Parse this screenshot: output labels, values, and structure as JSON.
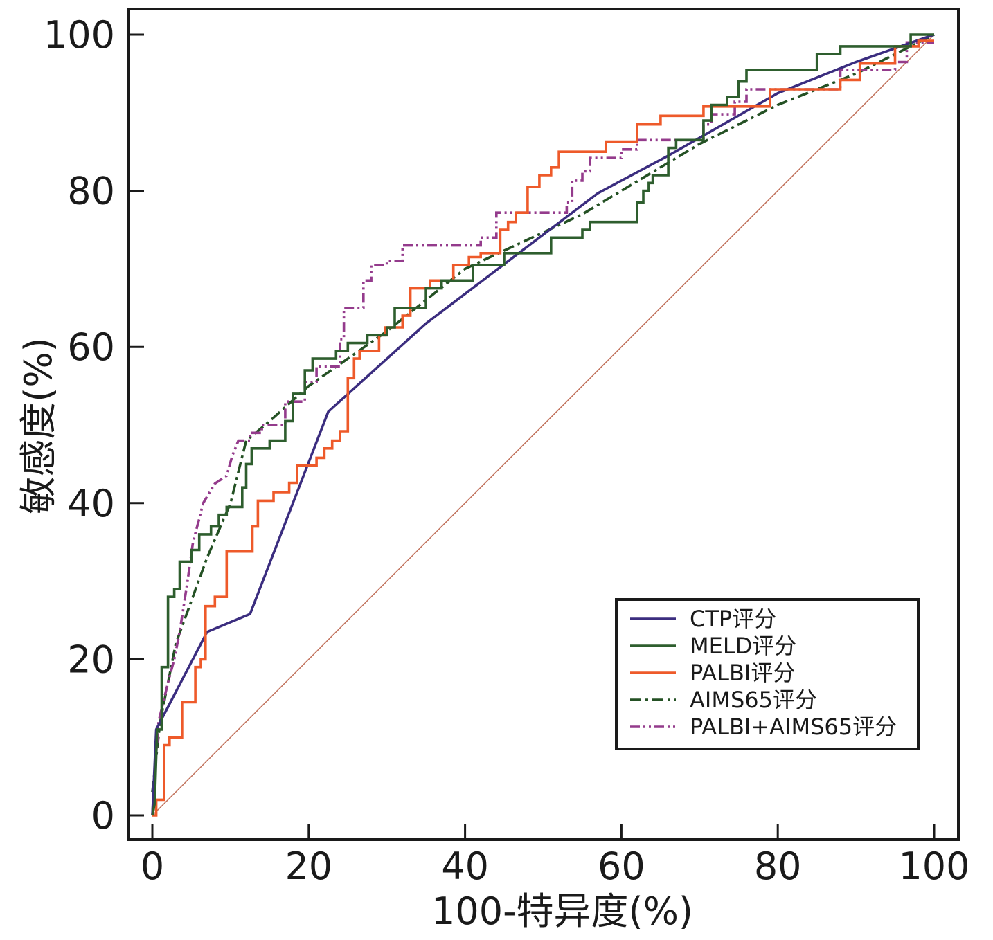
{
  "chart_data": {
    "type": "line",
    "title": "",
    "xlabel": "100-特异度(%)",
    "ylabel": "敏感度(%)",
    "xlim": [
      0,
      100
    ],
    "ylim": [
      0,
      100
    ],
    "x_ticks": [
      "0",
      "20",
      "40",
      "60",
      "80",
      "100"
    ],
    "y_ticks": [
      "0",
      "20",
      "40",
      "60",
      "80",
      "100"
    ],
    "legend_position": "bottom-right",
    "reference_line": {
      "name": "reference",
      "color": "#c0705a",
      "points": [
        [
          0,
          0
        ],
        [
          100,
          100
        ]
      ]
    },
    "series": [
      {
        "name": "CTP评分",
        "color": "#3b2d7f",
        "dash": "solid",
        "points": [
          [
            0,
            0
          ],
          [
            0.5,
            11
          ],
          [
            7,
            23.5
          ],
          [
            12.5,
            25.8
          ],
          [
            22.5,
            51.7
          ],
          [
            35,
            63
          ],
          [
            57,
            79.7
          ],
          [
            66,
            84.5
          ],
          [
            80,
            92.5
          ],
          [
            90,
            96.5
          ],
          [
            100,
            100
          ]
        ]
      },
      {
        "name": "MELD评分",
        "color": "#2e5e2e",
        "dash": "solid",
        "points": [
          [
            0,
            0
          ],
          [
            0.3,
            1.5
          ],
          [
            0.6,
            11
          ],
          [
            1.2,
            11
          ],
          [
            1.2,
            19
          ],
          [
            2,
            19
          ],
          [
            2,
            28
          ],
          [
            2.8,
            28
          ],
          [
            2.8,
            29
          ],
          [
            3.5,
            29
          ],
          [
            3.5,
            32.5
          ],
          [
            5,
            32.5
          ],
          [
            5,
            34
          ],
          [
            6,
            34
          ],
          [
            6,
            36
          ],
          [
            7.5,
            36
          ],
          [
            7.5,
            37
          ],
          [
            8.5,
            37
          ],
          [
            8.5,
            38.5
          ],
          [
            9.5,
            38.5
          ],
          [
            9.5,
            39.5
          ],
          [
            11.5,
            39.5
          ],
          [
            11.5,
            42
          ],
          [
            12,
            42
          ],
          [
            12,
            45
          ],
          [
            12.7,
            45
          ],
          [
            12.7,
            47
          ],
          [
            15,
            47
          ],
          [
            15,
            48
          ],
          [
            17,
            48
          ],
          [
            17,
            50.5
          ],
          [
            18,
            50.5
          ],
          [
            18,
            54
          ],
          [
            19.5,
            54
          ],
          [
            19.5,
            57
          ],
          [
            20.5,
            57
          ],
          [
            20.5,
            58.5
          ],
          [
            23.5,
            58.5
          ],
          [
            23.5,
            59.5
          ],
          [
            25,
            59.5
          ],
          [
            25,
            60.5
          ],
          [
            27.5,
            60.5
          ],
          [
            27.5,
            61.5
          ],
          [
            30,
            61.5
          ],
          [
            30,
            62.5
          ],
          [
            31,
            62.5
          ],
          [
            31,
            65
          ],
          [
            35,
            65
          ],
          [
            35,
            67.5
          ],
          [
            37,
            67.5
          ],
          [
            37,
            68.5
          ],
          [
            41,
            68.5
          ],
          [
            41,
            70.5
          ],
          [
            45,
            70.5
          ],
          [
            45,
            72
          ],
          [
            51,
            72
          ],
          [
            51,
            74
          ],
          [
            55,
            74
          ],
          [
            55,
            75
          ],
          [
            56,
            75
          ],
          [
            56,
            76
          ],
          [
            62,
            76
          ],
          [
            62,
            78.5
          ],
          [
            62.8,
            78.5
          ],
          [
            62.8,
            80
          ],
          [
            63.5,
            80
          ],
          [
            63.5,
            81
          ],
          [
            64,
            81
          ],
          [
            64,
            82
          ],
          [
            66,
            82
          ],
          [
            66,
            85.5
          ],
          [
            67,
            85.5
          ],
          [
            67,
            86.5
          ],
          [
            70.5,
            86.5
          ],
          [
            70.5,
            89
          ],
          [
            71.5,
            89
          ],
          [
            71.5,
            91
          ],
          [
            73.5,
            91
          ],
          [
            73.5,
            92
          ],
          [
            75,
            92
          ],
          [
            75,
            94
          ],
          [
            76,
            94
          ],
          [
            76,
            95.5
          ],
          [
            85,
            95.5
          ],
          [
            85,
            97.5
          ],
          [
            88,
            97.5
          ],
          [
            88,
            98.5
          ],
          [
            97,
            98.5
          ],
          [
            97,
            100
          ],
          [
            100,
            100
          ]
        ]
      },
      {
        "name": "PALBI评分",
        "color": "#ee5a2a",
        "dash": "solid",
        "points": [
          [
            0,
            0
          ],
          [
            0.5,
            0
          ],
          [
            0.5,
            2
          ],
          [
            1.5,
            2
          ],
          [
            1.5,
            9
          ],
          [
            2.2,
            9
          ],
          [
            2.2,
            10
          ],
          [
            3.8,
            10
          ],
          [
            3.8,
            14.5
          ],
          [
            5.5,
            14.5
          ],
          [
            5.5,
            19
          ],
          [
            6.2,
            19
          ],
          [
            6.2,
            20
          ],
          [
            6.8,
            20
          ],
          [
            6.8,
            26.8
          ],
          [
            8,
            26.8
          ],
          [
            8,
            28
          ],
          [
            9.5,
            28
          ],
          [
            9.5,
            33.8
          ],
          [
            12.8,
            33.8
          ],
          [
            12.8,
            37
          ],
          [
            13.5,
            37
          ],
          [
            13.5,
            40.3
          ],
          [
            15.5,
            40.3
          ],
          [
            15.5,
            41.4
          ],
          [
            17.5,
            41.4
          ],
          [
            17.5,
            42.6
          ],
          [
            18.5,
            42.6
          ],
          [
            18.5,
            44.8
          ],
          [
            21,
            44.8
          ],
          [
            21,
            45.8
          ],
          [
            22,
            45.8
          ],
          [
            22,
            47
          ],
          [
            23,
            47
          ],
          [
            23,
            48
          ],
          [
            24,
            48
          ],
          [
            24,
            49.2
          ],
          [
            25,
            49.2
          ],
          [
            25,
            56
          ],
          [
            25.8,
            56
          ],
          [
            25.8,
            58.5
          ],
          [
            26.5,
            58.5
          ],
          [
            26.5,
            59.5
          ],
          [
            29,
            59.5
          ],
          [
            29,
            61.5
          ],
          [
            29.8,
            61.5
          ],
          [
            29.8,
            62.5
          ],
          [
            32,
            62.5
          ],
          [
            32,
            64
          ],
          [
            33,
            64
          ],
          [
            33,
            67.5
          ],
          [
            35.5,
            67.5
          ],
          [
            35.5,
            68.5
          ],
          [
            38.5,
            68.5
          ],
          [
            38.5,
            70.5
          ],
          [
            40.5,
            70.5
          ],
          [
            40.5,
            71.5
          ],
          [
            42,
            71.5
          ],
          [
            42,
            72
          ],
          [
            44.5,
            72
          ],
          [
            44.5,
            75
          ],
          [
            45.5,
            75
          ],
          [
            45.5,
            76
          ],
          [
            46.5,
            76
          ],
          [
            46.5,
            77.2
          ],
          [
            48,
            77.2
          ],
          [
            48,
            80.5
          ],
          [
            49.5,
            80.5
          ],
          [
            49.5,
            82
          ],
          [
            51,
            82
          ],
          [
            51,
            83
          ],
          [
            52,
            83
          ],
          [
            52,
            85
          ],
          [
            58,
            85
          ],
          [
            58,
            86.3
          ],
          [
            62,
            86.3
          ],
          [
            62,
            88.5
          ],
          [
            65,
            88.5
          ],
          [
            65,
            89.6
          ],
          [
            70.5,
            89.6
          ],
          [
            70.5,
            90.8
          ],
          [
            79,
            90.8
          ],
          [
            79,
            93
          ],
          [
            88,
            93
          ],
          [
            88,
            94.2
          ],
          [
            90.5,
            94.2
          ],
          [
            90.5,
            96.3
          ],
          [
            95,
            96.3
          ],
          [
            95,
            98.5
          ],
          [
            98,
            98.5
          ],
          [
            98,
            99.2
          ],
          [
            100,
            99.2
          ]
        ]
      },
      {
        "name": "AIMS65评分",
        "color": "#245124",
        "dash": "dashdot",
        "points": [
          [
            0,
            3
          ],
          [
            1,
            12
          ],
          [
            3,
            22
          ],
          [
            7,
            33
          ],
          [
            10,
            40
          ],
          [
            12,
            48
          ],
          [
            15,
            50.5
          ],
          [
            20,
            55
          ],
          [
            30,
            62
          ],
          [
            40,
            70
          ],
          [
            55,
            77
          ],
          [
            70,
            86
          ],
          [
            80,
            91
          ],
          [
            90,
            95
          ],
          [
            100,
            100
          ]
        ]
      },
      {
        "name": "PALBI+AIMS65评分",
        "color": "#943b8c",
        "dash": "dashdotdot",
        "points": [
          [
            0,
            0
          ],
          [
            0.3,
            5
          ],
          [
            0.8,
            12
          ],
          [
            2,
            17
          ],
          [
            2.8,
            20
          ],
          [
            3.5,
            23.5
          ],
          [
            4.5,
            30
          ],
          [
            5.2,
            35
          ],
          [
            6,
            38
          ],
          [
            6.5,
            40
          ],
          [
            8,
            42.5
          ],
          [
            9.5,
            43.5
          ],
          [
            10.2,
            46
          ],
          [
            11,
            48
          ],
          [
            12.5,
            48
          ],
          [
            12.5,
            49
          ],
          [
            14,
            49
          ],
          [
            14,
            50
          ],
          [
            17,
            50
          ],
          [
            17,
            53
          ],
          [
            19.5,
            53
          ],
          [
            19.5,
            55.5
          ],
          [
            21,
            55.5
          ],
          [
            21,
            57.5
          ],
          [
            24,
            57.5
          ],
          [
            24,
            61
          ],
          [
            24.5,
            61
          ],
          [
            24.5,
            65
          ],
          [
            27,
            65
          ],
          [
            27,
            68.5
          ],
          [
            28,
            68.5
          ],
          [
            28,
            70.5
          ],
          [
            30,
            70.5
          ],
          [
            30,
            71
          ],
          [
            32,
            71
          ],
          [
            32,
            73
          ],
          [
            42,
            73
          ],
          [
            42,
            74
          ],
          [
            44,
            74
          ],
          [
            44,
            77.2
          ],
          [
            53,
            77.2
          ],
          [
            53,
            78.5
          ],
          [
            53.7,
            78.5
          ],
          [
            53.7,
            81.3
          ],
          [
            55,
            81.3
          ],
          [
            55,
            82.5
          ],
          [
            56,
            82.5
          ],
          [
            56,
            84.2
          ],
          [
            60,
            84.2
          ],
          [
            60,
            85.3
          ],
          [
            62,
            85.3
          ],
          [
            62,
            86.5
          ],
          [
            70.5,
            86.5
          ],
          [
            70.5,
            88.5
          ],
          [
            71.5,
            88.5
          ],
          [
            71.5,
            89.8
          ],
          [
            74.5,
            89.8
          ],
          [
            74.5,
            91.4
          ],
          [
            76,
            91.4
          ],
          [
            76,
            93
          ],
          [
            88,
            93
          ],
          [
            88,
            95.5
          ],
          [
            95,
            95.5
          ],
          [
            95,
            96.5
          ],
          [
            96.5,
            96.5
          ],
          [
            96.5,
            99
          ],
          [
            100,
            99
          ]
        ]
      }
    ]
  }
}
